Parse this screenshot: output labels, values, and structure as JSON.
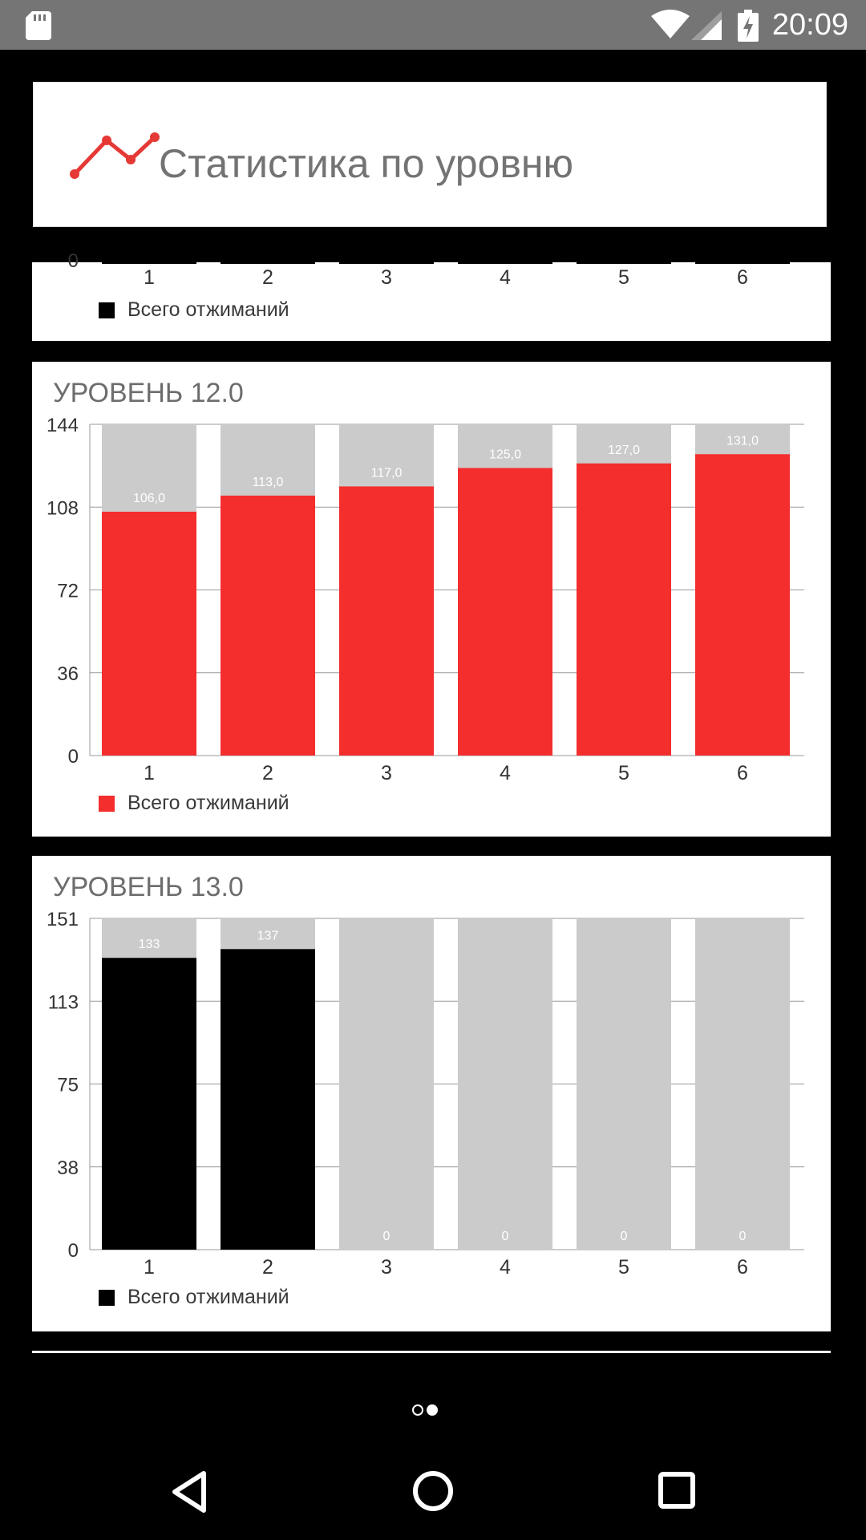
{
  "status_bar": {
    "time": "20:09"
  },
  "header": {
    "title": "Статистика по уровню",
    "icon": "line-chart-icon",
    "icon_color": "#e53935"
  },
  "colors": {
    "red": "#f42d2d",
    "black": "#000000",
    "gray": "#cbcbcb",
    "value_label": "#ffffff"
  },
  "partial_card": {
    "x_labels": [
      "1",
      "2",
      "3",
      "4",
      "5",
      "6"
    ],
    "y_visible_label": "0",
    "legend_label": "Всего отжиманий",
    "legend_color": "#000000"
  },
  "chart_data": [
    {
      "type": "bar",
      "title": "УРОВЕНЬ 12.0",
      "categories": [
        "1",
        "2",
        "3",
        "4",
        "5",
        "6"
      ],
      "series": [
        {
          "name": "Всего отжиманий",
          "values": [
            106,
            113,
            117,
            125,
            127,
            131
          ]
        }
      ],
      "value_labels": [
        "106,0",
        "113,0",
        "117,0",
        "125,0",
        "127,0",
        "131,0"
      ],
      "y_ticks": [
        "0",
        "36",
        "72",
        "108",
        "144"
      ],
      "ylim": [
        0,
        144
      ],
      "bar_color": "#f42d2d",
      "background_bar_color": "#cbcbcb",
      "grid": true,
      "legend": "bottom-left"
    },
    {
      "type": "bar",
      "title": "УРОВЕНЬ 13.0",
      "categories": [
        "1",
        "2",
        "3",
        "4",
        "5",
        "6"
      ],
      "series": [
        {
          "name": "Всего отжиманий",
          "values": [
            133,
            137,
            0,
            0,
            0,
            0
          ]
        }
      ],
      "value_labels": [
        "133",
        "137",
        "0",
        "0",
        "0",
        "0"
      ],
      "y_ticks": [
        "0",
        "38",
        "75",
        "113",
        "151"
      ],
      "ylim": [
        0,
        151
      ],
      "bar_color": "#000000",
      "background_bar_color": "#cbcbcb",
      "grid": true,
      "legend": "bottom-left"
    }
  ],
  "pager": {
    "pages": 2,
    "current": 2
  }
}
